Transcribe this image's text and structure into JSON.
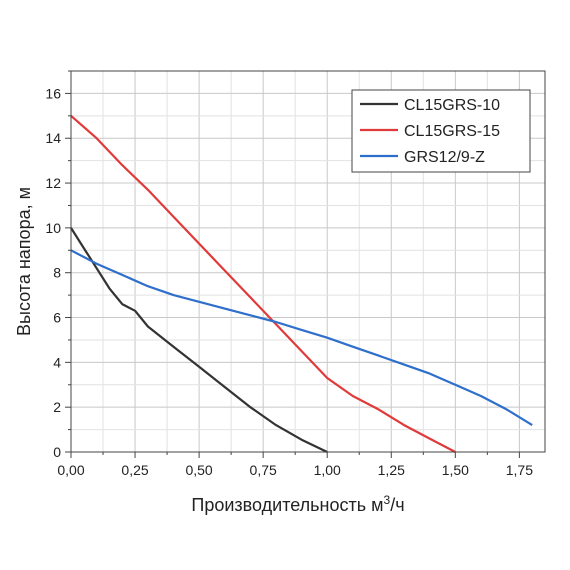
{
  "chart_data": {
    "type": "line",
    "xlabel": "Производительность м",
    "xlabel_sup": "3",
    "xlabel_tail": "/ч",
    "ylabel": "Высота напора, м",
    "xlim": [
      0,
      1.85
    ],
    "ylim": [
      0,
      17
    ],
    "x_ticks": [
      "0,00",
      "0,25",
      "0,50",
      "0,75",
      "1,00",
      "1,25",
      "1,50",
      "1,75"
    ],
    "x_tick_values": [
      0,
      0.25,
      0.5,
      0.75,
      1.0,
      1.25,
      1.5,
      1.75
    ],
    "y_ticks": [
      "0",
      "2",
      "4",
      "6",
      "8",
      "10",
      "12",
      "14",
      "16"
    ],
    "y_tick_values": [
      0,
      2,
      4,
      6,
      8,
      10,
      12,
      14,
      16
    ],
    "grid": true,
    "legend_position": "top-right",
    "series": [
      {
        "name": "CL15GRS-10",
        "color": "#333333",
        "x": [
          0,
          0.05,
          0.1,
          0.15,
          0.2,
          0.25,
          0.3,
          0.4,
          0.5,
          0.6,
          0.7,
          0.8,
          0.9,
          1.0
        ],
        "y": [
          10,
          9.1,
          8.2,
          7.3,
          6.6,
          6.3,
          5.6,
          4.7,
          3.8,
          2.9,
          2.0,
          1.2,
          0.55,
          0
        ]
      },
      {
        "name": "CL15GRS-15",
        "color": "#e03a3a",
        "x": [
          0,
          0.1,
          0.2,
          0.3,
          0.4,
          0.5,
          0.6,
          0.7,
          0.8,
          0.9,
          1.0,
          1.1,
          1.2,
          1.3,
          1.4,
          1.5
        ],
        "y": [
          15,
          14.0,
          12.8,
          11.7,
          10.5,
          9.3,
          8.1,
          6.9,
          5.7,
          4.5,
          3.3,
          2.5,
          1.9,
          1.2,
          0.6,
          0
        ]
      },
      {
        "name": "GRS12/9-Z",
        "color": "#2f6fcc",
        "x": [
          0,
          0.1,
          0.2,
          0.3,
          0.4,
          0.5,
          0.6,
          0.7,
          0.8,
          0.9,
          1.0,
          1.1,
          1.2,
          1.3,
          1.4,
          1.5,
          1.6,
          1.7,
          1.8
        ],
        "y": [
          9.0,
          8.4,
          7.9,
          7.4,
          7.0,
          6.7,
          6.4,
          6.1,
          5.8,
          5.45,
          5.1,
          4.7,
          4.3,
          3.9,
          3.5,
          3.0,
          2.5,
          1.9,
          1.2
        ]
      }
    ]
  }
}
